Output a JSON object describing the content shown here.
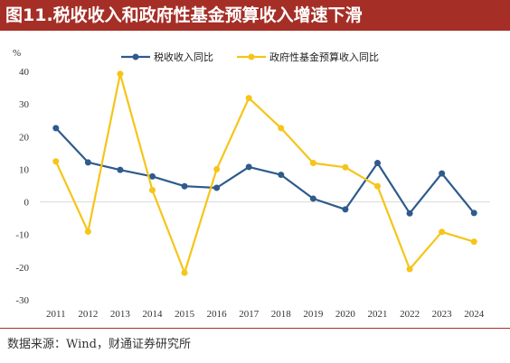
{
  "title": "图11.税收收入和政府性基金预算收入增速下滑",
  "source": "数据来源：Wind，财通证券研究所",
  "chart_data": {
    "type": "line",
    "unit": "%",
    "x": [
      "2011",
      "2012",
      "2013",
      "2014",
      "2015",
      "2016",
      "2017",
      "2018",
      "2019",
      "2020",
      "2021",
      "2022",
      "2023",
      "2024"
    ],
    "ylim": [
      -30,
      40
    ],
    "yticks": [
      -30,
      -20,
      -10,
      0,
      10,
      20,
      30,
      40
    ],
    "legend_position": "top",
    "grid": false,
    "series": [
      {
        "name": "税收收入同比",
        "color": "#2e5b8c",
        "values": [
          22.6,
          12.1,
          9.8,
          7.8,
          4.8,
          4.3,
          10.7,
          8.3,
          1.0,
          -2.3,
          11.9,
          -3.5,
          8.7,
          -3.4
        ]
      },
      {
        "name": "政府性基金预算收入同比",
        "color": "#f5c518",
        "values": [
          12.4,
          -9.1,
          39.2,
          3.6,
          -21.7,
          10.0,
          31.8,
          22.6,
          11.9,
          10.6,
          4.8,
          -20.6,
          -9.2,
          -12.2
        ]
      }
    ]
  }
}
